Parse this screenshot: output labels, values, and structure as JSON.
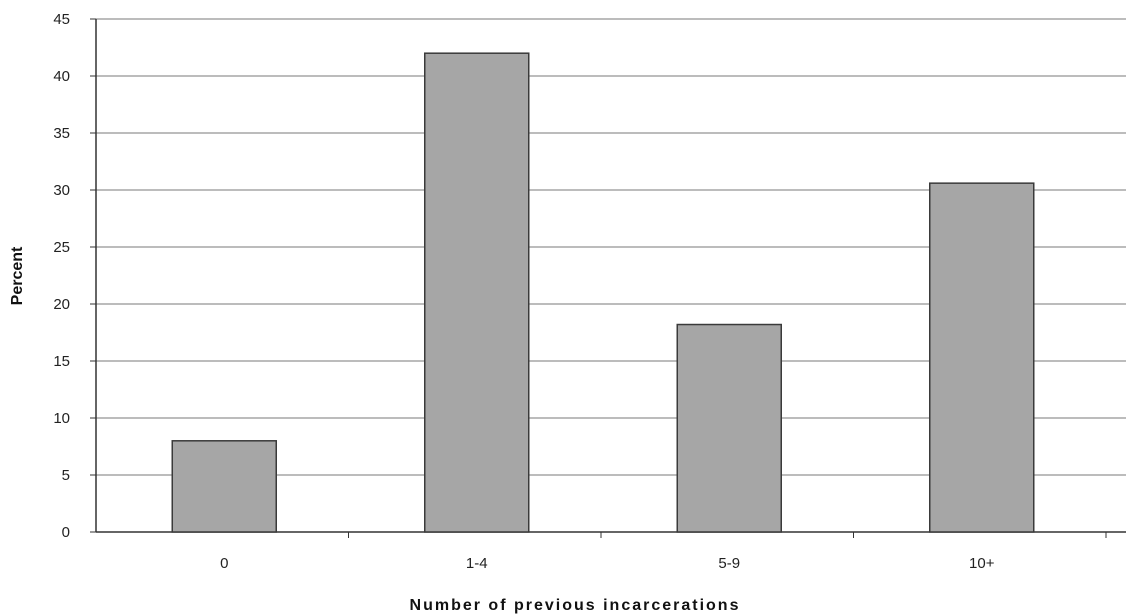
{
  "chart_data": {
    "type": "bar",
    "categories": [
      "0",
      "1-4",
      "5-9",
      "10+"
    ],
    "values": [
      8,
      42,
      18.2,
      30.6
    ],
    "xlabel": "Number of previous incarcerations",
    "ylabel": "Percent",
    "ylim": [
      0,
      45
    ],
    "yticks": [
      "0",
      "5",
      "10",
      "15",
      "20",
      "25",
      "30",
      "35",
      "40",
      "45"
    ],
    "grid": true,
    "legend": "none",
    "colors": {
      "bar_fill": "#a6a6a6",
      "bar_stroke": "#3a3a3a",
      "grid": "#7a7a7a",
      "axis": "#333333"
    }
  }
}
